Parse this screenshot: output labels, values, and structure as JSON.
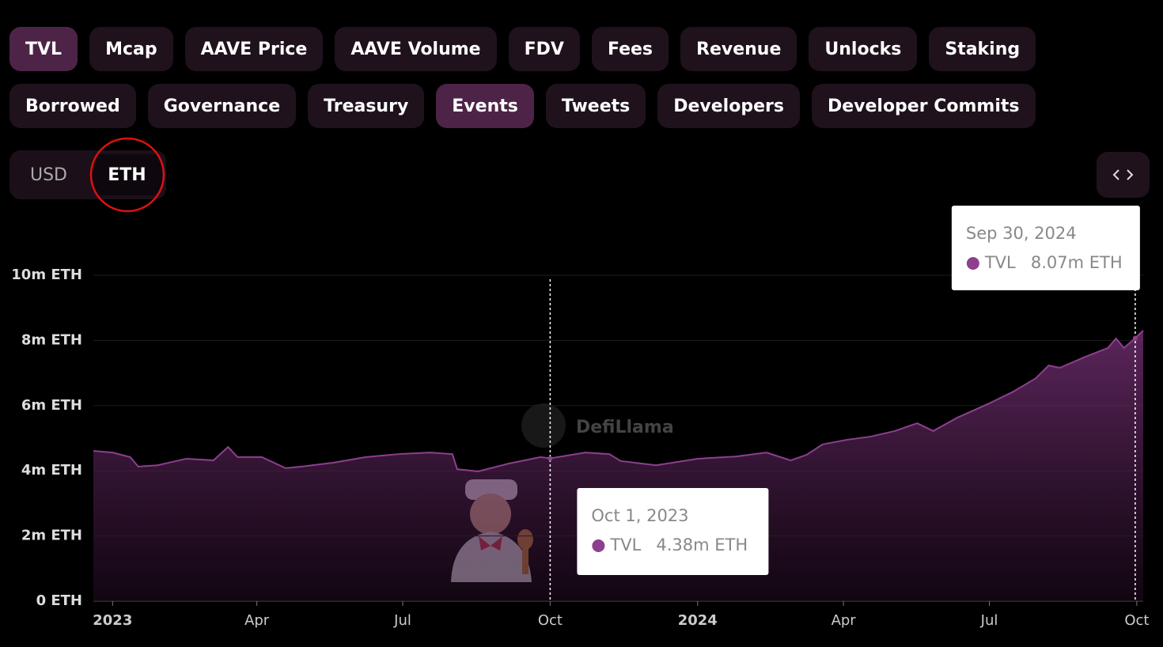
{
  "tabs": [
    {
      "label": "TVL",
      "active": true
    },
    {
      "label": "Mcap",
      "active": false
    },
    {
      "label": "AAVE Price",
      "active": false
    },
    {
      "label": "AAVE Volume",
      "active": false
    },
    {
      "label": "FDV",
      "active": false
    },
    {
      "label": "Fees",
      "active": false
    },
    {
      "label": "Revenue",
      "active": false
    },
    {
      "label": "Unlocks",
      "active": false
    },
    {
      "label": "Staking",
      "active": false
    },
    {
      "label": "Borrowed",
      "active": false
    },
    {
      "label": "Governance",
      "active": false
    },
    {
      "label": "Treasury",
      "active": false
    },
    {
      "label": "Events",
      "active": true
    },
    {
      "label": "Tweets",
      "active": false
    },
    {
      "label": "Developers",
      "active": false
    },
    {
      "label": "Developer Commits",
      "active": false
    }
  ],
  "currency": [
    {
      "label": "USD",
      "active": false
    },
    {
      "label": "ETH",
      "active": true
    }
  ],
  "chart_data": {
    "type": "area",
    "watermark": "DefiLlama",
    "x": [
      "2022-12-20",
      "2023-01-01",
      "2023-01-12",
      "2023-01-17",
      "2023-01-29",
      "2023-02-16",
      "2023-03-05",
      "2023-03-14",
      "2023-03-20",
      "2023-04-04",
      "2023-04-19",
      "2023-04-29",
      "2023-05-19",
      "2023-06-08",
      "2023-06-28",
      "2023-07-18",
      "2023-08-01",
      "2023-08-04",
      "2023-08-17",
      "2023-09-05",
      "2023-09-25",
      "2023-10-01",
      "2023-10-23",
      "2023-11-07",
      "2023-11-14",
      "2023-12-06",
      "2024-01-01",
      "2024-01-25",
      "2024-02-13",
      "2024-02-28",
      "2024-03-09",
      "2024-03-19",
      "2024-04-03",
      "2024-04-18",
      "2024-05-03",
      "2024-05-17",
      "2024-05-27",
      "2024-06-11",
      "2024-07-01",
      "2024-07-16",
      "2024-07-30",
      "2024-08-07",
      "2024-08-14",
      "2024-08-29",
      "2024-09-13",
      "2024-09-18",
      "2024-09-23",
      "2024-09-30",
      "2024-10-05"
    ],
    "series": [
      {
        "name": "TVL",
        "color": "#8e3f8e",
        "values": [
          4.61,
          4.56,
          4.42,
          4.13,
          4.17,
          4.37,
          4.32,
          4.73,
          4.42,
          4.42,
          4.08,
          4.13,
          4.25,
          4.42,
          4.51,
          4.56,
          4.51,
          4.05,
          3.98,
          4.22,
          4.42,
          4.38,
          4.56,
          4.51,
          4.3,
          4.17,
          4.37,
          4.44,
          4.56,
          4.32,
          4.49,
          4.81,
          4.95,
          5.05,
          5.22,
          5.46,
          5.22,
          5.63,
          6.07,
          6.43,
          6.84,
          7.23,
          7.16,
          7.48,
          7.77,
          8.06,
          7.77,
          8.07,
          8.3
        ]
      }
    ],
    "xlim": [
      "2022-12-20",
      "2024-10-05"
    ],
    "xticks": [
      {
        "value": "2023-01-01",
        "label": "2023"
      },
      {
        "value": "2023-04-01",
        "label": "Apr"
      },
      {
        "value": "2023-07-01",
        "label": "Jul"
      },
      {
        "value": "2023-10-01",
        "label": "Oct"
      },
      {
        "value": "2024-01-01",
        "label": "2024"
      },
      {
        "value": "2024-04-01",
        "label": "Apr"
      },
      {
        "value": "2024-07-01",
        "label": "Jul"
      },
      {
        "value": "2024-10-01",
        "label": "Oct"
      }
    ],
    "ylim": [
      0,
      10
    ],
    "yticks": [
      {
        "value": 0,
        "label": "0 ETH"
      },
      {
        "value": 2,
        "label": "2m ETH"
      },
      {
        "value": 4,
        "label": "4m ETH"
      },
      {
        "value": 6,
        "label": "6m ETH"
      },
      {
        "value": 8,
        "label": "8m ETH"
      },
      {
        "value": 10,
        "label": "10m ETH"
      }
    ],
    "grid": true,
    "annotations": [
      {
        "x": "2023-10-01",
        "date": "Oct 1, 2023",
        "value": 4.38,
        "value_label": "4.38m ETH"
      },
      {
        "x": "2024-09-30",
        "date": "Sep 30, 2024",
        "value": 8.07,
        "value_label": "8.07m ETH"
      }
    ]
  }
}
